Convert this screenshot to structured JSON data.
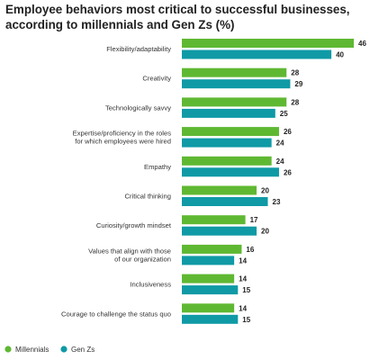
{
  "chart_data": {
    "type": "bar",
    "orientation": "horizontal",
    "title": "Employee behaviors most critical to successful businesses, according to millennials and Gen Zs (%)",
    "categories": [
      [
        "Flexibility/adaptability"
      ],
      [
        "Creativity"
      ],
      [
        "Technologically savvy"
      ],
      [
        "Expertise/proficiency in the roles",
        "for which employees were hired"
      ],
      [
        "Empathy"
      ],
      [
        "Critical thinking"
      ],
      [
        "Curiosity/growth mindset"
      ],
      [
        "Values that align with those",
        "of our organization"
      ],
      [
        "Inclusiveness"
      ],
      [
        "Courage to challenge the status quo"
      ]
    ],
    "series": [
      {
        "name": "Millennials",
        "color": "#5fb832",
        "values": [
          46,
          28,
          28,
          26,
          24,
          20,
          17,
          16,
          14,
          14
        ]
      },
      {
        "name": "Gen Zs",
        "color": "#0f9aa6",
        "values": [
          40,
          29,
          25,
          24,
          26,
          23,
          20,
          14,
          15,
          15
        ]
      }
    ],
    "xlim": [
      0,
      46
    ],
    "grid": false,
    "legend_position": "bottom-left",
    "data_labels": true
  }
}
